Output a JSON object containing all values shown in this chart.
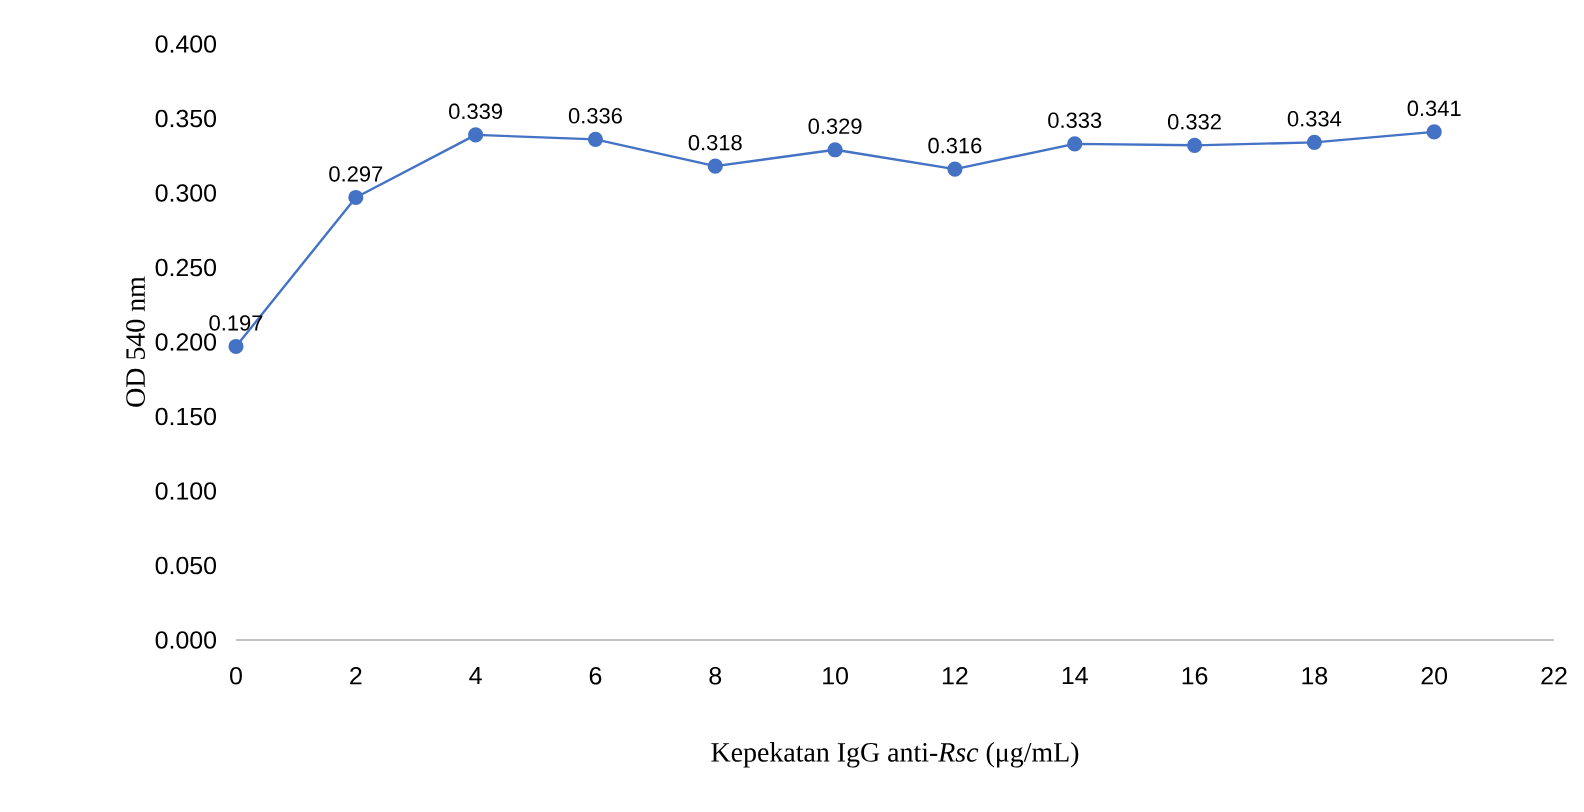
{
  "chart_data": {
    "type": "line",
    "xlabel": "Kepekatan IgG anti-*Rsc* (μg/mL)",
    "ylabel": "OD 540 nm",
    "x": [
      0,
      2,
      4,
      6,
      8,
      10,
      12,
      14,
      16,
      18,
      20
    ],
    "series": [
      {
        "color": "#4472c4",
        "values": [
          0.197,
          0.297,
          0.339,
          0.336,
          0.318,
          0.329,
          0.316,
          0.333,
          0.332,
          0.334,
          0.341
        ]
      }
    ],
    "xlim": [
      0,
      22
    ],
    "xticks": [
      0,
      2,
      4,
      6,
      8,
      10,
      12,
      14,
      16,
      18,
      20,
      22
    ],
    "ylim": [
      0,
      0.4
    ],
    "yticks": [
      {
        "value": 0,
        "label": "0.000"
      },
      {
        "value": 0.05,
        "label": "0.050"
      },
      {
        "value": 0.1,
        "label": "0.100"
      },
      {
        "value": 0.15,
        "label": "0.150"
      },
      {
        "value": 0.2,
        "label": "0.200"
      },
      {
        "value": 0.25,
        "label": "0.250"
      },
      {
        "value": 0.3,
        "label": "0.300"
      },
      {
        "value": 0.35,
        "label": "0.350"
      },
      {
        "value": 0.4,
        "label": "0.400"
      }
    ],
    "data_labels": true,
    "marker": "circle",
    "line_style": "solid"
  }
}
